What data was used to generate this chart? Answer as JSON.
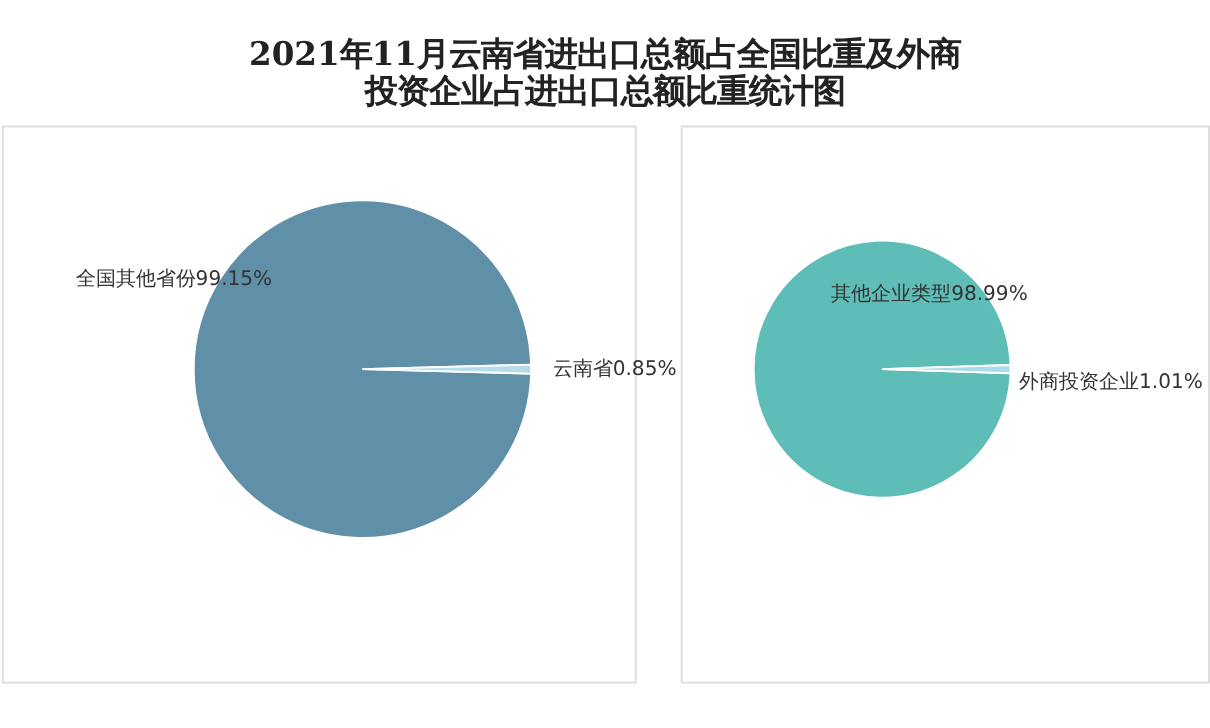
{
  "chart_data": [
    {
      "type": "pie",
      "title": "2021年11月云南省进出口总额占全国比重及外商投资企业占进出口总额比重统计图",
      "categories": [
        "全国其他省份",
        "云南省"
      ],
      "values": [
        99.15,
        0.85
      ],
      "colors": [
        "#5f90a8",
        "#b7dbe8"
      ],
      "value_labels": [
        "99.15%",
        "0.85%"
      ],
      "legend": false
    },
    {
      "type": "pie",
      "categories": [
        "其他企业类型",
        "外商投资企业"
      ],
      "values": [
        98.99,
        1.01
      ],
      "colors": [
        "#5fbdb7",
        "#a9dcea"
      ],
      "value_labels": [
        "98.99%",
        "1.01%"
      ],
      "legend": false
    }
  ]
}
